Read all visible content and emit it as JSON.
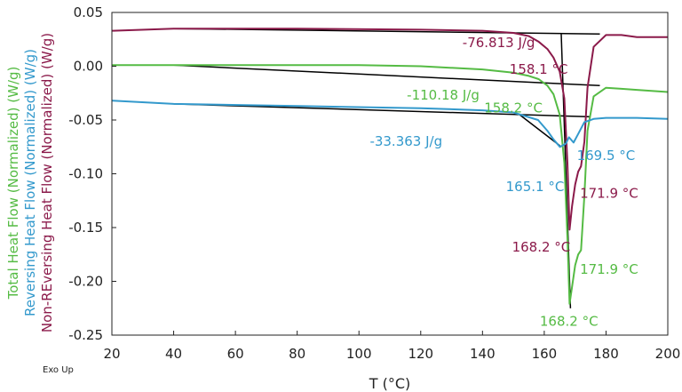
{
  "chart_data": {
    "type": "line",
    "xlabel": "T (°C)",
    "ylabels": [
      {
        "text": "Total Heat Flow (Normalized) (W/g)",
        "color": "#55bb44"
      },
      {
        "text": "Reversing Heat Flow (Normalized) (W/g)",
        "color": "#3399cc"
      },
      {
        "text": "Non-REversing Heat Flow (Normalized) (W/g)",
        "color": "#8b1a4a"
      }
    ],
    "corner_label": "Exo Up",
    "xlim": [
      20,
      200
    ],
    "ylim": [
      -0.25,
      0.05
    ],
    "x_ticks": [
      20,
      40,
      60,
      80,
      100,
      120,
      140,
      160,
      180,
      200
    ],
    "y_ticks": [
      0.05,
      0.0,
      -0.05,
      -0.1,
      -0.15,
      -0.2,
      -0.25
    ],
    "y_tick_labels": [
      "0.05",
      "0.00",
      "-0.05",
      "-0.10",
      "-0.15",
      "-0.20",
      "-0.25"
    ],
    "grid": false,
    "series": [
      {
        "color": "#8b1a4a",
        "points": [
          [
            20,
            0.033
          ],
          [
            40,
            0.035
          ],
          [
            80,
            0.035
          ],
          [
            120,
            0.034
          ],
          [
            140,
            0.033
          ],
          [
            150,
            0.031
          ],
          [
            155,
            0.028
          ],
          [
            158.1,
            0.023
          ],
          [
            161,
            0.016
          ],
          [
            163,
            0.008
          ],
          [
            165,
            -0.005
          ],
          [
            166.5,
            -0.03
          ],
          [
            167.5,
            -0.09
          ],
          [
            168.2,
            -0.152
          ],
          [
            169,
            -0.13
          ],
          [
            170,
            -0.11
          ],
          [
            171,
            -0.098
          ],
          [
            171.9,
            -0.093
          ],
          [
            173,
            -0.07
          ],
          [
            174,
            -0.02
          ],
          [
            176,
            0.018
          ],
          [
            180,
            0.029
          ],
          [
            185,
            0.029
          ],
          [
            190,
            0.027
          ],
          [
            200,
            0.027
          ]
        ]
      },
      {
        "color": "#55bb44",
        "points": [
          [
            20,
            0.001
          ],
          [
            40,
            0.001
          ],
          [
            60,
            0.001
          ],
          [
            100,
            0.001
          ],
          [
            120,
            0.0
          ],
          [
            140,
            -0.003
          ],
          [
            150,
            -0.006
          ],
          [
            155,
            -0.009
          ],
          [
            158.2,
            -0.012
          ],
          [
            161,
            -0.018
          ],
          [
            163,
            -0.026
          ],
          [
            165,
            -0.045
          ],
          [
            166.5,
            -0.09
          ],
          [
            167.5,
            -0.16
          ],
          [
            168.2,
            -0.221
          ],
          [
            169,
            -0.205
          ],
          [
            170,
            -0.185
          ],
          [
            171,
            -0.175
          ],
          [
            171.9,
            -0.171
          ],
          [
            173,
            -0.12
          ],
          [
            174,
            -0.06
          ],
          [
            176,
            -0.028
          ],
          [
            180,
            -0.02
          ],
          [
            185,
            -0.021
          ],
          [
            190,
            -0.022
          ],
          [
            200,
            -0.024
          ]
        ]
      },
      {
        "color": "#3399cc",
        "points": [
          [
            20,
            -0.032
          ],
          [
            40,
            -0.035
          ],
          [
            80,
            -0.037
          ],
          [
            120,
            -0.039
          ],
          [
            140,
            -0.041
          ],
          [
            150,
            -0.043
          ],
          [
            158,
            -0.05
          ],
          [
            161,
            -0.06
          ],
          [
            163,
            -0.068
          ],
          [
            165.1,
            -0.075
          ],
          [
            167,
            -0.072
          ],
          [
            168,
            -0.066
          ],
          [
            169.5,
            -0.071
          ],
          [
            171,
            -0.063
          ],
          [
            173,
            -0.052
          ],
          [
            176,
            -0.049
          ],
          [
            180,
            -0.048
          ],
          [
            190,
            -0.048
          ],
          [
            200,
            -0.049
          ]
        ]
      }
    ],
    "baselines": [
      {
        "color": "#000000",
        "points": [
          [
            40,
            0.035
          ],
          [
            178,
            0.03
          ]
        ]
      },
      {
        "color": "#000000",
        "points": [
          [
            40,
            0.001
          ],
          [
            178,
            -0.018
          ]
        ]
      },
      {
        "color": "#000000",
        "points": [
          [
            40,
            -0.035
          ],
          [
            175,
            -0.047
          ]
        ]
      },
      {
        "color": "#000000",
        "points": [
          [
            152,
            -0.045
          ],
          [
            165.1,
            -0.074
          ]
        ]
      },
      {
        "color": "#000000",
        "points": [
          [
            165.5,
            0.03
          ],
          [
            168.5,
            -0.225
          ]
        ]
      }
    ],
    "annotations": [
      {
        "text": "-76.813 J/g",
        "x": 157,
        "y": 0.022,
        "anchor": "end",
        "color": "#8b1a4a"
      },
      {
        "text": "158.1 °C",
        "x": 158.2,
        "y": -0.003,
        "anchor": "middle",
        "color": "#8b1a4a"
      },
      {
        "text": "-110.18 J/g",
        "x": 139,
        "y": -0.027,
        "anchor": "end",
        "color": "#55bb44"
      },
      {
        "text": "158.2 °C",
        "x": 150,
        "y": -0.039,
        "anchor": "middle",
        "color": "#55bb44"
      },
      {
        "text": "-33.363 J/g",
        "x": 127,
        "y": -0.07,
        "anchor": "end",
        "color": "#3399cc"
      },
      {
        "text": "169.5 °C",
        "x": 180,
        "y": -0.083,
        "anchor": "middle",
        "color": "#3399cc"
      },
      {
        "text": "165.1 °C",
        "x": 157,
        "y": -0.112,
        "anchor": "middle",
        "color": "#3399cc"
      },
      {
        "text": "171.9 °C",
        "x": 181,
        "y": -0.118,
        "anchor": "middle",
        "color": "#8b1a4a"
      },
      {
        "text": "168.2 °C",
        "x": 159,
        "y": -0.168,
        "anchor": "middle",
        "color": "#8b1a4a"
      },
      {
        "text": "171.9 °C",
        "x": 181,
        "y": -0.189,
        "anchor": "middle",
        "color": "#55bb44"
      },
      {
        "text": "168.2 °C",
        "x": 168,
        "y": -0.237,
        "anchor": "middle",
        "color": "#55bb44"
      }
    ]
  }
}
